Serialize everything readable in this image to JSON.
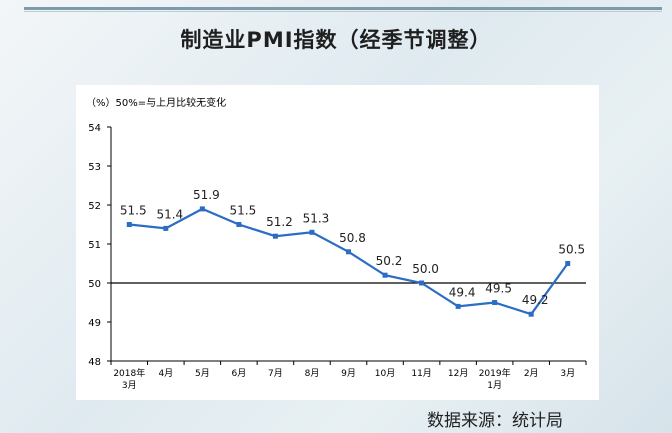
{
  "title": "制造业PMI指数（经季节调整）",
  "source": "数据来源：统计局",
  "chart_data": {
    "type": "line",
    "unit_note": "（%）50%=与上月比较无变化",
    "categories": [
      {
        "line1": "2018年",
        "line2": "3月"
      },
      {
        "line1": "4月",
        "line2": ""
      },
      {
        "line1": "5月",
        "line2": ""
      },
      {
        "line1": "6月",
        "line2": ""
      },
      {
        "line1": "7月",
        "line2": ""
      },
      {
        "line1": "8月",
        "line2": ""
      },
      {
        "line1": "9月",
        "line2": ""
      },
      {
        "line1": "10月",
        "line2": ""
      },
      {
        "line1": "11月",
        "line2": ""
      },
      {
        "line1": "12月",
        "line2": ""
      },
      {
        "line1": "2019年",
        "line2": "1月"
      },
      {
        "line1": "2月",
        "line2": ""
      },
      {
        "line1": "3月",
        "line2": ""
      }
    ],
    "values": [
      51.5,
      51.4,
      51.9,
      51.5,
      51.2,
      51.3,
      50.8,
      50.2,
      50.0,
      49.4,
      49.5,
      49.2,
      50.5
    ],
    "value_labels": [
      "51.5",
      "51.4",
      "51.9",
      "51.5",
      "51.2",
      "51.3",
      "50.8",
      "50.2",
      "50.0",
      "49.4",
      "49.5",
      "49.2",
      "50.5"
    ],
    "yticks": [
      "48",
      "49",
      "50",
      "51",
      "52",
      "53",
      "54"
    ],
    "ylim": [
      48,
      54
    ],
    "reference_line": 50,
    "line_color": "#2b6cc4",
    "reference_color": "#000000",
    "grid": false
  }
}
